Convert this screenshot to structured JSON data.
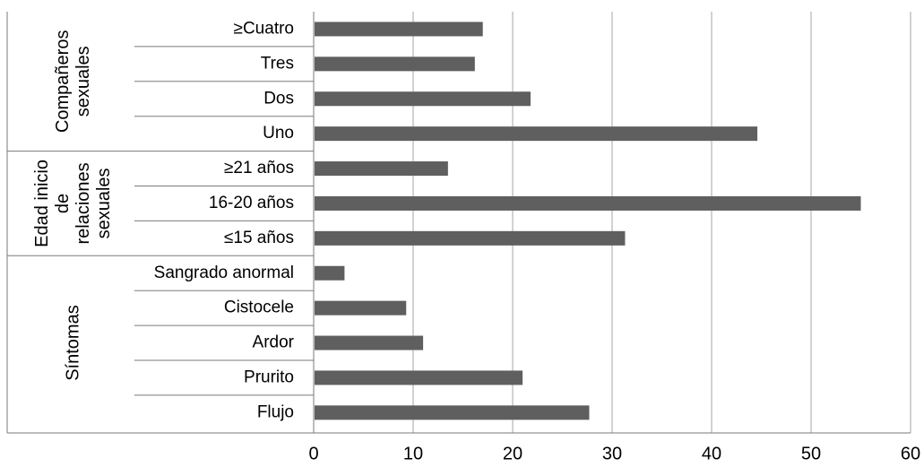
{
  "chart_data": {
    "type": "bar",
    "orientation": "horizontal",
    "title": "",
    "xlabel": "",
    "ylabel": "",
    "xlim": [
      0,
      60
    ],
    "x_ticks": [
      0,
      10,
      20,
      30,
      40,
      50,
      60
    ],
    "grid": "vertical",
    "legend": "none",
    "bar_color": "#5f5f5f",
    "groups": [
      {
        "name": "Compañeros sexuales",
        "name_lines": [
          "Compañeros",
          "sexuales"
        ],
        "categories": [
          "≥Cuatro",
          "Tres",
          "Dos",
          "Uno"
        ],
        "values": [
          17,
          16.2,
          21.8,
          44.6
        ]
      },
      {
        "name": "Edad inicio de relaciones sexuales",
        "name_lines": [
          "Edad inicio",
          "de",
          "relaciones",
          "sexuales"
        ],
        "categories": [
          "≥21 años",
          "16-20 años",
          "≤15 años"
        ],
        "values": [
          13.5,
          55,
          31.3
        ]
      },
      {
        "name": "Síntomas",
        "name_lines": [
          "Síntomas"
        ],
        "categories": [
          "Sangrado anormal",
          "Cistocele",
          "Ardor",
          "Prurito",
          "Flujo"
        ],
        "values": [
          3.1,
          9.3,
          11,
          21,
          27.7
        ]
      }
    ]
  }
}
